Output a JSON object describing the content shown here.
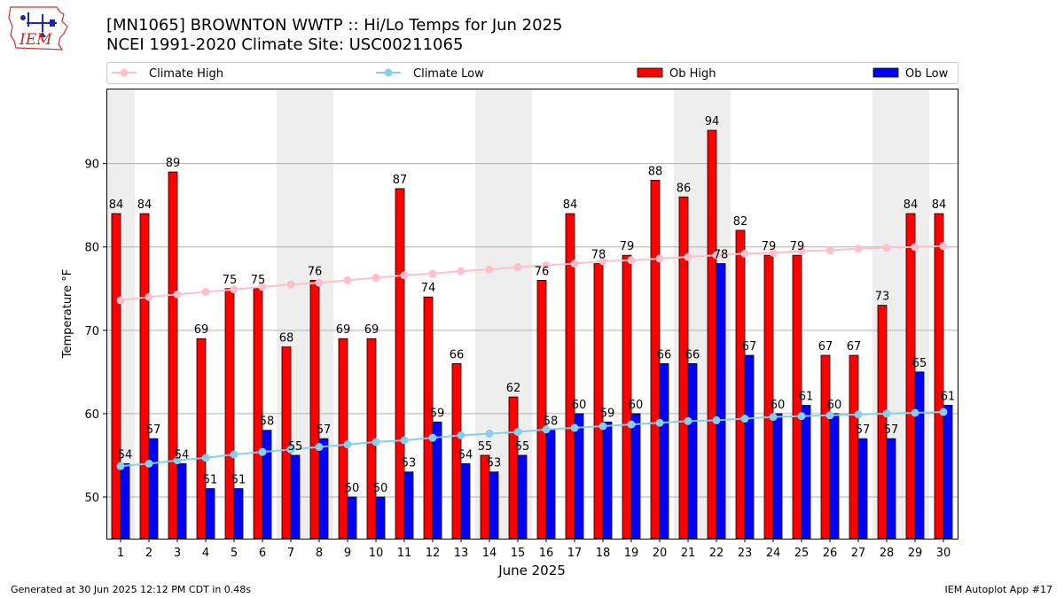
{
  "header": {
    "title": "[MN1065] BROWNTON WWTP :: Hi/Lo Temps for Jun 2025",
    "subtitle": "NCEI 1991-2020 Climate Site: USC00211065",
    "logo_text": "IEM"
  },
  "footer": {
    "generated": "Generated at 30 Jun 2025 12:12 PM CDT in 0.48s",
    "app": "IEM Autoplot App #17"
  },
  "chart_data": {
    "type": "bar",
    "xlabel": "June 2025",
    "ylabel": "Temperature °F",
    "ylim": [
      45,
      99
    ],
    "yticks": [
      50,
      60,
      70,
      80,
      90
    ],
    "grid": "horizontal",
    "legend_position": "top",
    "weekend_shading_days": [
      1,
      7,
      8,
      14,
      15,
      21,
      22,
      28,
      29
    ],
    "categories": [
      "1",
      "2",
      "3",
      "4",
      "5",
      "6",
      "7",
      "8",
      "9",
      "10",
      "11",
      "12",
      "13",
      "14",
      "15",
      "16",
      "17",
      "18",
      "19",
      "20",
      "21",
      "22",
      "23",
      "24",
      "25",
      "26",
      "27",
      "28",
      "29",
      "30"
    ],
    "series": [
      {
        "name": "Ob High",
        "kind": "bar",
        "color": "#ff0000",
        "values": [
          84,
          84,
          89,
          69,
          75,
          75,
          68,
          76,
          69,
          69,
          87,
          74,
          66,
          55,
          62,
          76,
          84,
          78,
          79,
          88,
          86,
          94,
          82,
          79,
          79,
          67,
          67,
          73,
          84,
          84
        ]
      },
      {
        "name": "Ob Low",
        "kind": "bar",
        "color": "#0000ff",
        "values": [
          54,
          57,
          54,
          51,
          51,
          58,
          55,
          57,
          50,
          50,
          53,
          59,
          54,
          53,
          55,
          58,
          60,
          59,
          60,
          66,
          66,
          78,
          67,
          60,
          61,
          60,
          57,
          57,
          65,
          61
        ]
      },
      {
        "name": "Climate High",
        "kind": "line",
        "color": "#ffc0cb",
        "values": [
          73.6,
          74.0,
          74.3,
          74.6,
          74.9,
          75.2,
          75.5,
          75.7,
          76.0,
          76.3,
          76.6,
          76.8,
          77.1,
          77.3,
          77.6,
          77.8,
          78.0,
          78.3,
          78.4,
          78.6,
          78.8,
          79.0,
          79.2,
          79.3,
          79.5,
          79.6,
          79.8,
          79.9,
          80.0,
          80.1
        ]
      },
      {
        "name": "Climate Low",
        "kind": "line",
        "color": "#87ceeb",
        "values": [
          53.7,
          54.0,
          54.4,
          54.7,
          55.1,
          55.4,
          55.7,
          56.0,
          56.3,
          56.6,
          56.8,
          57.1,
          57.4,
          57.6,
          57.8,
          58.1,
          58.3,
          58.5,
          58.7,
          58.9,
          59.1,
          59.2,
          59.4,
          59.6,
          59.7,
          59.8,
          59.9,
          60.0,
          60.1,
          60.2
        ]
      }
    ]
  }
}
